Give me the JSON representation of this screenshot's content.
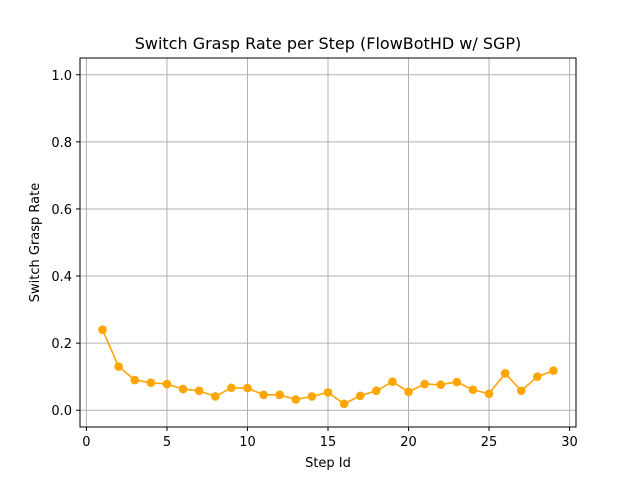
{
  "chart_data": {
    "type": "line",
    "title": "Switch Grasp Rate per Step (FlowBotHD w/ SGP)",
    "xlabel": "Step Id",
    "ylabel": "Switch Grasp Rate",
    "xlim": [
      -0.4,
      30.4
    ],
    "ylim": [
      -0.05,
      1.05
    ],
    "xticks": [
      0,
      5,
      10,
      15,
      20,
      25,
      30
    ],
    "yticks": [
      0.0,
      0.2,
      0.4,
      0.6,
      0.8,
      1.0
    ],
    "xtick_labels": [
      "0",
      "5",
      "10",
      "15",
      "20",
      "25",
      "30"
    ],
    "ytick_labels": [
      "0.0",
      "0.2",
      "0.4",
      "0.6",
      "0.8",
      "1.0"
    ],
    "grid": true,
    "series": [
      {
        "color": "#ffa500",
        "marker": "circle",
        "x": [
          1,
          2,
          3,
          4,
          5,
          6,
          7,
          8,
          9,
          10,
          11,
          12,
          13,
          14,
          15,
          16,
          17,
          18,
          19,
          20,
          21,
          22,
          23,
          24,
          25,
          26,
          27,
          28,
          29
        ],
        "y": [
          0.24,
          0.13,
          0.09,
          0.082,
          0.078,
          0.063,
          0.058,
          0.041,
          0.067,
          0.066,
          0.046,
          0.046,
          0.032,
          0.041,
          0.053,
          0.019,
          0.043,
          0.058,
          0.085,
          0.055,
          0.078,
          0.076,
          0.084,
          0.061,
          0.049,
          0.11,
          0.058,
          0.1,
          0.118
        ]
      }
    ]
  }
}
